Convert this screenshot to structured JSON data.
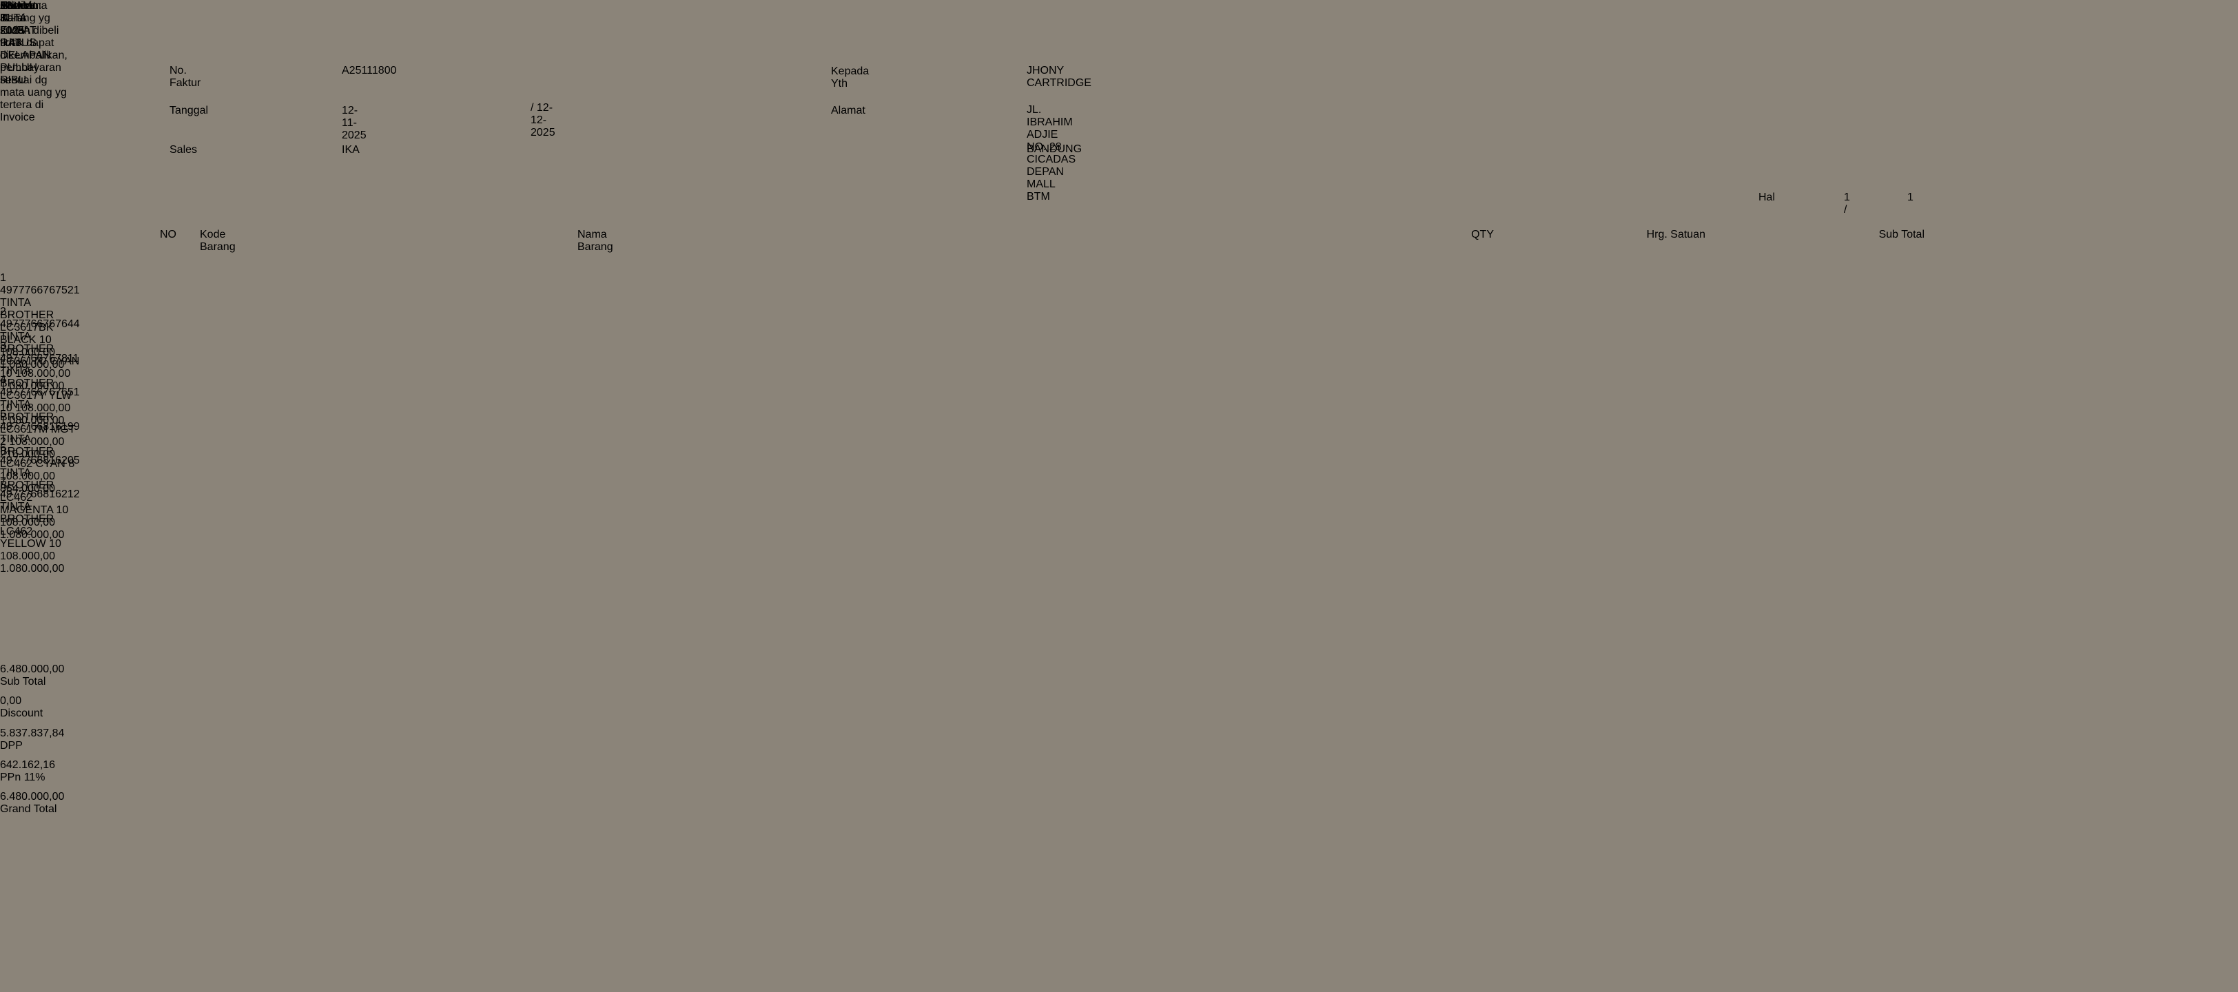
{
  "meta": {
    "title": "Invoice",
    "printed_datetime": "18-11-2025 9:43",
    "page": {
      "label": "Hal",
      "current": "1 /",
      "total": "1"
    }
  },
  "header": {
    "no_faktur": {
      "label": "No. Faktur",
      "value": "A25111800"
    },
    "tanggal": {
      "label": "Tanggal",
      "value": "12-11-2025",
      "due": "/ 12-12-2025"
    },
    "sales": {
      "label": "Sales",
      "value": "IKA"
    },
    "kepada": {
      "label": "Kepada Yth",
      "value": "JHONY CARTRIDGE"
    },
    "alamat": {
      "label": "Alamat",
      "line1": "JL. IBRAHIM ADJIE NO. 28 CICADAS DEPAN MALL BTM",
      "line2": "BANDUNG"
    }
  },
  "table": {
    "columns": {
      "no": "NO",
      "code": "Kode Barang",
      "name": "Nama Barang",
      "qty": "QTY",
      "price": "Hrg. Satuan",
      "subtotal": "Sub Total"
    },
    "items": [
      {
        "no": "1",
        "code": "4977766767521",
        "name": "TINTA BROTHER LC3617BK BLACK",
        "qty": "10",
        "price": "108.000,00",
        "subtotal": "1.080.000,00"
      },
      {
        "no": "2",
        "code": "4977766767644",
        "name": "TINTA BROTHER LC3617C CYAN",
        "qty": "10",
        "price": "108.000,00",
        "subtotal": "1.080.000,00"
      },
      {
        "no": "3",
        "code": "4977766767811",
        "name": "TINTA BROTHER LC3617Y YLW",
        "qty": "10",
        "price": "108.000,00",
        "subtotal": "1.080.000,00"
      },
      {
        "no": "4",
        "code": "4977766767651",
        "name": "TINTA BROTHER LC3617M MGT",
        "qty": "2",
        "price": "108.000,00",
        "subtotal": "216.000,00"
      },
      {
        "no": "5",
        "code": "4977766816199",
        "name": "TINTA BROTHER LC462 CYAN",
        "qty": "8",
        "price": "108.000,00",
        "subtotal": "864.000,00"
      },
      {
        "no": "6",
        "code": "4977766816205",
        "name": "TINTA BROTHER LC462 MAGENTA",
        "qty": "10",
        "price": "108.000,00",
        "subtotal": "1.080.000,00"
      },
      {
        "no": "7",
        "code": "4977766816212",
        "name": "TINTA BROTHER LC462 YELLOW",
        "qty": "10",
        "price": "108.000,00",
        "subtotal": "1.080.000,00"
      }
    ]
  },
  "summary": {
    "amount_in_words": "ENAM JUTA EMPAT RATUS DELAPAN PULUH RIBU",
    "rows": [
      {
        "label": "Sub Total",
        "value": "6.480.000,00"
      },
      {
        "label": "Discount",
        "value": "0,00"
      },
      {
        "label": "DPP",
        "value": "5.837.837,84"
      },
      {
        "label": "PPn 11%",
        "value": "642.162,16"
      },
      {
        "label": "Grand Total",
        "value": "6.480.000,00"
      }
    ]
  },
  "signatures": [
    "Hormat Kami",
    "Admin",
    "Penerima"
  ],
  "note": "Catatan: Barang yg sudah dibeli tidak dapat dikembalikan, pembayaran sesuai dg mata uang yg tertera di Invoice",
  "colors": {
    "paper": "#d2c9b8",
    "surface": "#8b8479",
    "ink": "#57534b",
    "ink_faded": "#6e6961"
  }
}
